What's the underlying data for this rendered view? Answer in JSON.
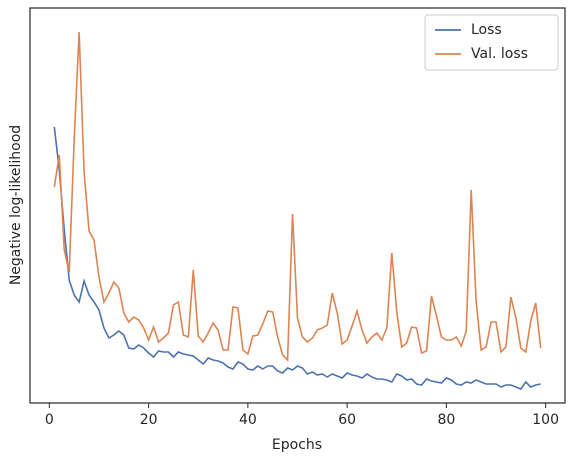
{
  "chart_data": {
    "type": "line",
    "xlabel": "Epochs",
    "ylabel": "Negative log-likelihood",
    "x": [
      1,
      2,
      3,
      4,
      5,
      6,
      7,
      8,
      9,
      10,
      11,
      12,
      13,
      14,
      15,
      16,
      17,
      18,
      19,
      20,
      21,
      22,
      23,
      24,
      25,
      26,
      27,
      28,
      29,
      30,
      31,
      32,
      33,
      34,
      35,
      36,
      37,
      38,
      39,
      40,
      41,
      42,
      43,
      44,
      45,
      46,
      47,
      48,
      49,
      50,
      51,
      52,
      53,
      54,
      55,
      56,
      57,
      58,
      59,
      60,
      61,
      62,
      63,
      64,
      65,
      66,
      67,
      68,
      69,
      70,
      71,
      72,
      73,
      74,
      75,
      76,
      77,
      78,
      79,
      80,
      81,
      82,
      83,
      84,
      85,
      86,
      87,
      88,
      89,
      90,
      91,
      92,
      93,
      94,
      95,
      96,
      97,
      98,
      99
    ],
    "series": [
      {
        "name": "Loss",
        "color": "#4c72b0",
        "values": [
          276,
          233,
          173,
          123,
          108,
          101,
          122,
          108,
          101,
          93,
          75,
          65,
          68,
          72,
          68,
          55,
          54,
          58,
          55,
          50,
          46,
          52,
          51,
          51,
          46,
          51,
          49,
          48,
          47,
          43,
          39,
          45,
          43,
          42,
          40,
          36,
          34,
          41,
          39,
          34,
          33,
          37,
          34,
          37,
          37,
          32,
          30,
          35,
          33,
          37,
          35,
          29,
          31,
          28,
          29,
          26,
          29,
          27,
          25,
          30,
          28,
          27,
          25,
          29,
          26,
          24,
          24,
          23,
          21,
          29,
          27,
          23,
          24,
          19,
          18,
          24,
          22,
          21,
          20,
          25,
          23,
          19,
          18,
          21,
          20,
          23,
          21,
          19,
          19,
          19,
          16,
          18,
          18,
          16,
          14,
          21,
          16,
          18,
          19
        ]
      },
      {
        "name": "Val. loss",
        "color": "#dd8452",
        "values": [
          216,
          248,
          153,
          131,
          263,
          371,
          231,
          172,
          163,
          126,
          101,
          110,
          121,
          115,
          90,
          81,
          86,
          83,
          75,
          63,
          76,
          61,
          65,
          70,
          98,
          101,
          68,
          66,
          133,
          67,
          61,
          70,
          80,
          73,
          53,
          53,
          96,
          95,
          53,
          49,
          67,
          68,
          79,
          92,
          91,
          66,
          48,
          43,
          189,
          85,
          66,
          61,
          65,
          73,
          75,
          78,
          110,
          90,
          59,
          63,
          77,
          92,
          73,
          60,
          66,
          70,
          63,
          75,
          150,
          91,
          56,
          60,
          76,
          75,
          50,
          52,
          107,
          87,
          66,
          63,
          63,
          66,
          57,
          72,
          213,
          101,
          53,
          56,
          81,
          81,
          51,
          56,
          106,
          85,
          55,
          51,
          82,
          100,
          55
        ]
      }
    ],
    "xlim": [
      -3.9,
      103.9
    ],
    "xticks": [
      0,
      20,
      40,
      60,
      80,
      100
    ],
    "ylim": [
      0,
      395
    ],
    "legend": "upper right"
  }
}
